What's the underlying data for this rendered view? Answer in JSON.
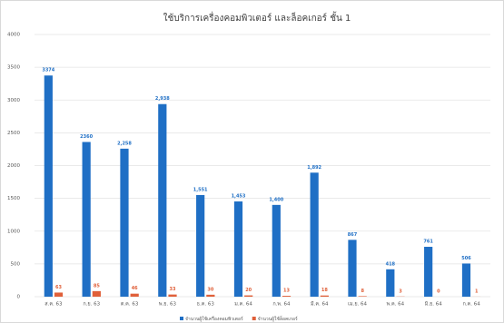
{
  "chart_data": {
    "type": "bar",
    "title": "ใช้บริการเครื่องคอมพิวเตอร์ และล็อคเกอร์ ชั้น 1",
    "categories": [
      "ส.ค. 63",
      "ก.ย. 63",
      "ต.ค. 63",
      "พ.ย. 63",
      "ธ.ค. 63",
      "ม.ค. 64",
      "ก.พ. 64",
      "มี.ค. 64",
      "เม.ย. 64",
      "พ.ค. 64",
      "มิ.ย. 64",
      "ก.ค. 64"
    ],
    "series": [
      {
        "name": "จำนวนผู้ใช้เครื่องคอมพิวเตอร์",
        "color": "#1f6fc5",
        "values": [
          3374,
          2360,
          2258,
          2938,
          1551,
          1453,
          1400,
          1892,
          867,
          418,
          761,
          506
        ],
        "value_labels": [
          "3374",
          "2360",
          "2,258",
          "2,938",
          "1,551",
          "1,453",
          "1,400",
          "1,892",
          "867",
          "418",
          "761",
          "506"
        ]
      },
      {
        "name": "จำนวนผู้ใช้ล็อคเกอร์",
        "color": "#e0603a",
        "values": [
          63,
          85,
          46,
          33,
          30,
          20,
          13,
          18,
          8,
          3,
          0,
          1
        ]
      }
    ],
    "ylim": [
      0,
      4000
    ],
    "yticks": [
      0,
      500,
      1000,
      1500,
      2000,
      2500,
      3000,
      3500,
      4000
    ],
    "grid": true,
    "legend": "bottom"
  }
}
